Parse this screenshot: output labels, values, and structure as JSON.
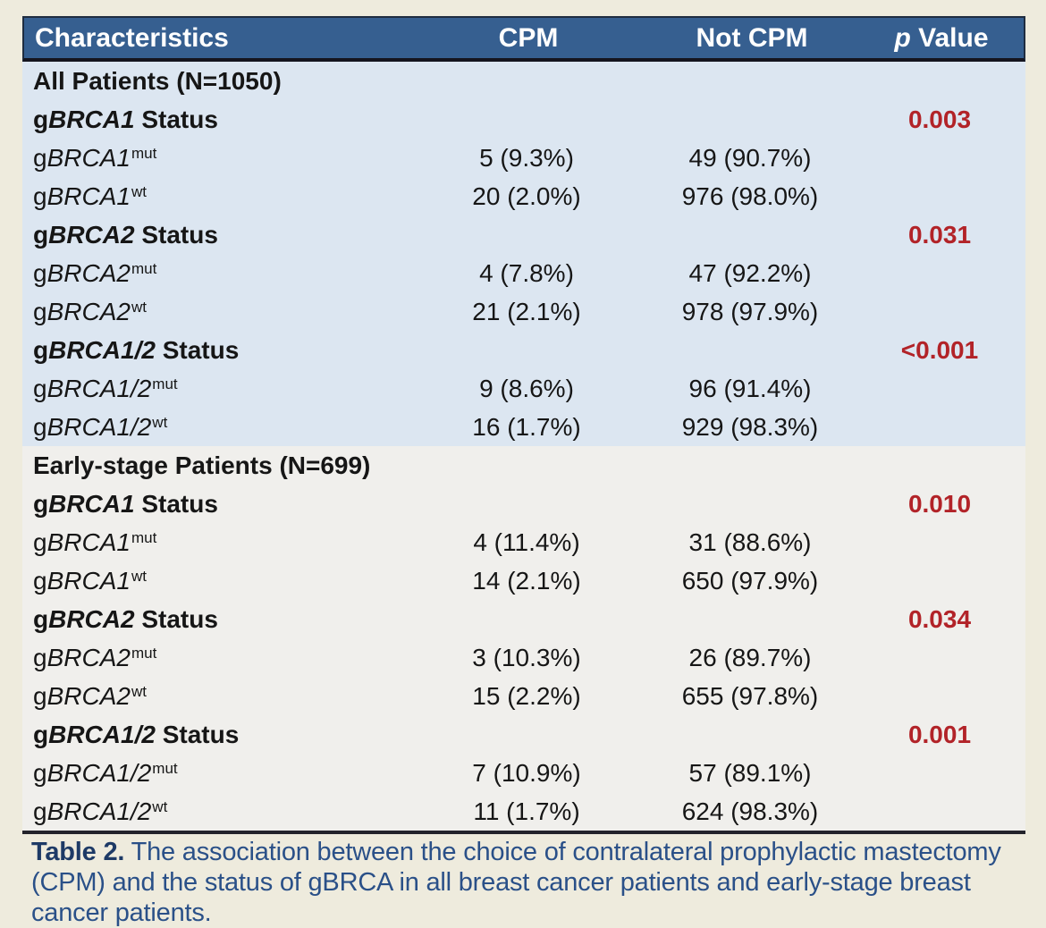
{
  "table": {
    "columns": [
      "Characteristics",
      "CPM",
      "Not CPM"
    ],
    "p_header_italic": "p",
    "p_header_rest": " Value",
    "gene_prefix": "g",
    "status_suffix": " Status",
    "sections": [
      {
        "title": "All Patients (N=1050)",
        "groups": [
          {
            "gene": "BRCA1",
            "p": "0.003",
            "rows": [
              {
                "sup": "mut",
                "cpm": "5 (9.3%)",
                "not_cpm": "49 (90.7%)"
              },
              {
                "sup": "wt",
                "cpm": "20 (2.0%)",
                "not_cpm": "976 (98.0%)"
              }
            ]
          },
          {
            "gene": "BRCA2",
            "p": "0.031",
            "rows": [
              {
                "sup": "mut",
                "cpm": "4 (7.8%)",
                "not_cpm": "47 (92.2%)"
              },
              {
                "sup": "wt",
                "cpm": "21 (2.1%)",
                "not_cpm": "978 (97.9%)"
              }
            ]
          },
          {
            "gene": "BRCA1/2",
            "p": "<0.001",
            "rows": [
              {
                "sup": "mut",
                "cpm": "9 (8.6%)",
                "not_cpm": "96 (91.4%)"
              },
              {
                "sup": "wt",
                "cpm": "16 (1.7%)",
                "not_cpm": "929 (98.3%)"
              }
            ]
          }
        ]
      },
      {
        "title": "Early-stage Patients (N=699)",
        "groups": [
          {
            "gene": "BRCA1",
            "p": "0.010",
            "rows": [
              {
                "sup": "mut",
                "cpm": "4 (11.4%)",
                "not_cpm": "31 (88.6%)"
              },
              {
                "sup": "wt",
                "cpm": "14 (2.1%)",
                "not_cpm": "650 (97.9%)"
              }
            ]
          },
          {
            "gene": "BRCA2",
            "p": "0.034",
            "rows": [
              {
                "sup": "mut",
                "cpm": "3 (10.3%)",
                "not_cpm": "26 (89.7%)"
              },
              {
                "sup": "wt",
                "cpm": "15 (2.2%)",
                "not_cpm": "655 (97.8%)"
              }
            ]
          },
          {
            "gene": "BRCA1/2",
            "p": "0.001",
            "rows": [
              {
                "sup": "mut",
                "cpm": "7 (10.9%)",
                "not_cpm": "57 (89.1%)"
              },
              {
                "sup": "wt",
                "cpm": "11 (1.7%)",
                "not_cpm": "624 (98.3%)"
              }
            ]
          }
        ]
      }
    ]
  },
  "caption": {
    "label": "Table 2.",
    "text": " The association between the choice of contralateral prophylactic mastectomy (CPM) and the status of gBRCA in all breast cancer patients and early-stage breast cancer patients."
  },
  "colors": {
    "page_background": "#eeebdd",
    "header_background": "#365f90",
    "header_text": "#ffffff",
    "header_rule": "#15151f",
    "section_all_patients_background": "#dce6f1",
    "section_early_stage_background": "#f0efec",
    "body_text": "#161616",
    "p_value_red": "#b22328",
    "bottom_rule": "#23232b",
    "caption_label_navy": "#1d3a66",
    "caption_text_blue": "#2a5088"
  },
  "chart_data": {
    "type": "table",
    "title": "Table 2. The association between the choice of contralateral prophylactic mastectomy (CPM) and the status of gBRCA in all breast cancer patients and early-stage breast cancer patients.",
    "columns": [
      "Characteristics",
      "CPM",
      "Not CPM",
      "p Value"
    ],
    "rows": [
      [
        "All Patients (N=1050)",
        "",
        "",
        ""
      ],
      [
        "gBRCA1 Status",
        "",
        "",
        "0.003"
      ],
      [
        "gBRCA1mut",
        "5 (9.3%)",
        "49 (90.7%)",
        ""
      ],
      [
        "gBRCA1wt",
        "20 (2.0%)",
        "976 (98.0%)",
        ""
      ],
      [
        "gBRCA2 Status",
        "",
        "",
        "0.031"
      ],
      [
        "gBRCA2mut",
        "4 (7.8%)",
        "47 (92.2%)",
        ""
      ],
      [
        "gBRCA2wt",
        "21 (2.1%)",
        "978 (97.9%)",
        ""
      ],
      [
        "gBRCA1/2 Status",
        "",
        "",
        "<0.001"
      ],
      [
        "gBRCA1/2mut",
        "9 (8.6%)",
        "96 (91.4%)",
        ""
      ],
      [
        "gBRCA1/2wt",
        "16 (1.7%)",
        "929 (98.3%)",
        ""
      ],
      [
        "Early-stage Patients (N=699)",
        "",
        "",
        ""
      ],
      [
        "gBRCA1 Status",
        "",
        "",
        "0.010"
      ],
      [
        "gBRCA1mut",
        "4 (11.4%)",
        "31 (88.6%)",
        ""
      ],
      [
        "gBRCA1wt",
        "14 (2.1%)",
        "650 (97.9%)",
        ""
      ],
      [
        "gBRCA2 Status",
        "",
        "",
        "0.034"
      ],
      [
        "gBRCA2mut",
        "3 (10.3%)",
        "26 (89.7%)",
        ""
      ],
      [
        "gBRCA2wt",
        "15 (2.2%)",
        "655 (97.8%)",
        ""
      ],
      [
        "gBRCA1/2 Status",
        "",
        "",
        "0.001"
      ],
      [
        "gBRCA1/2mut",
        "7 (10.9%)",
        "57 (89.1%)",
        ""
      ],
      [
        "gBRCA1/2wt",
        "11 (1.7%)",
        "624 (98.3%)",
        ""
      ]
    ]
  }
}
